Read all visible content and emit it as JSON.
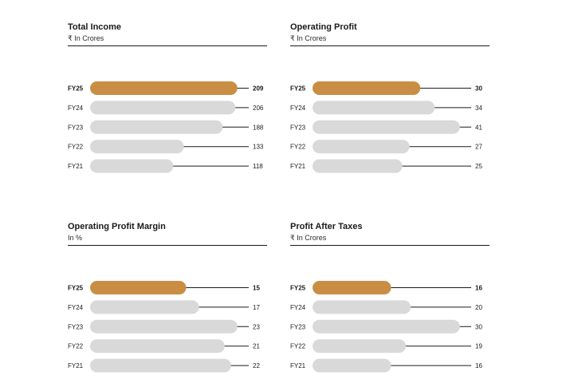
{
  "colors": {
    "highlight": "#c98e44",
    "bar": "#d9d9d9",
    "connector": "#1a1a1a",
    "text": "#1a1a1a"
  },
  "chart_data": [
    {
      "type": "bar",
      "orientation": "horizontal",
      "title": "Total Income",
      "subtitle": "₹ In Crores",
      "categories": [
        "FY25",
        "FY24",
        "FY23",
        "FY22",
        "FY21"
      ],
      "values": [
        209,
        206,
        188,
        133,
        118
      ],
      "value_labels": [
        "209",
        "206",
        "188",
        "133",
        "118"
      ],
      "highlight": "FY25"
    },
    {
      "type": "bar",
      "orientation": "horizontal",
      "title": "Operating Profit",
      "subtitle": "₹ In Crores",
      "categories": [
        "FY25",
        "FY24",
        "FY23",
        "FY22",
        "FY21"
      ],
      "values": [
        30,
        34,
        41,
        27,
        25
      ],
      "value_labels": [
        "30",
        "34",
        "41",
        "27",
        "25"
      ],
      "highlight": "FY25"
    },
    {
      "type": "bar",
      "orientation": "horizontal",
      "title": "Operating Profit Margin",
      "subtitle": "In %",
      "categories": [
        "FY25",
        "FY24",
        "FY23",
        "FY22",
        "FY21"
      ],
      "values": [
        15,
        17,
        23,
        21,
        22
      ],
      "value_labels": [
        "15",
        "17",
        "23",
        "21",
        "22"
      ],
      "highlight": "FY25"
    },
    {
      "type": "bar",
      "orientation": "horizontal",
      "title": "Profit After Taxes",
      "subtitle": "₹ In Crores",
      "categories": [
        "FY25",
        "FY24",
        "FY23",
        "FY22",
        "FY21"
      ],
      "values": [
        16,
        20,
        30,
        19,
        16
      ],
      "value_labels": [
        "16",
        "20",
        "30",
        "19",
        "16"
      ],
      "highlight": "FY25"
    }
  ]
}
